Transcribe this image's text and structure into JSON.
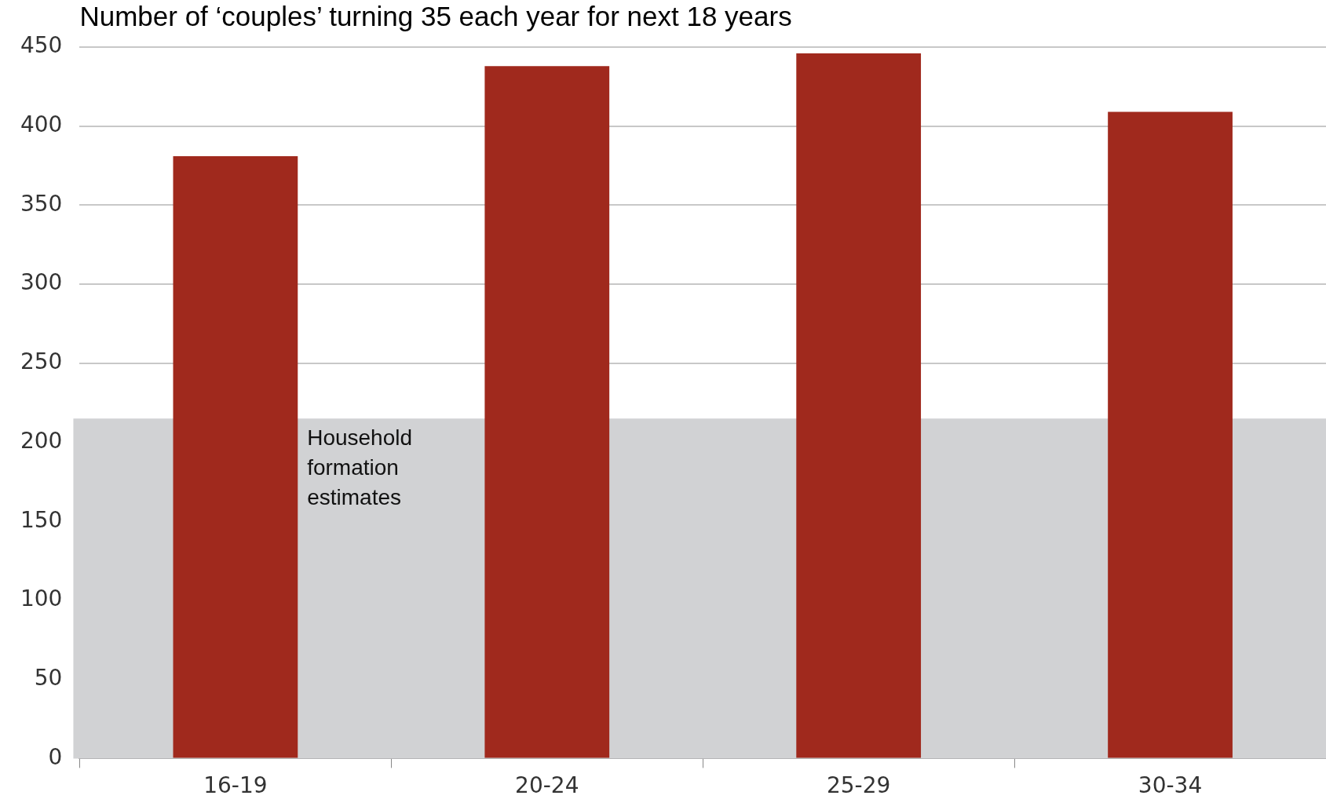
{
  "chart_data": {
    "type": "bar",
    "title": "Number of ‘couples’ turning 35 each year for next 18 years",
    "categories": [
      "16-19",
      "20-24",
      "25-29",
      "30-34"
    ],
    "values": [
      381,
      438,
      446,
      409
    ],
    "color": "#a0291d",
    "ylim": [
      0,
      450
    ],
    "yticks": [
      0,
      50,
      100,
      150,
      200,
      250,
      300,
      350,
      400,
      450
    ],
    "grid": "y",
    "bands": [
      {
        "axis": "y",
        "from": 0,
        "to": 215,
        "label": "Household formation estimates",
        "color": "#d1d2d4"
      }
    ]
  }
}
